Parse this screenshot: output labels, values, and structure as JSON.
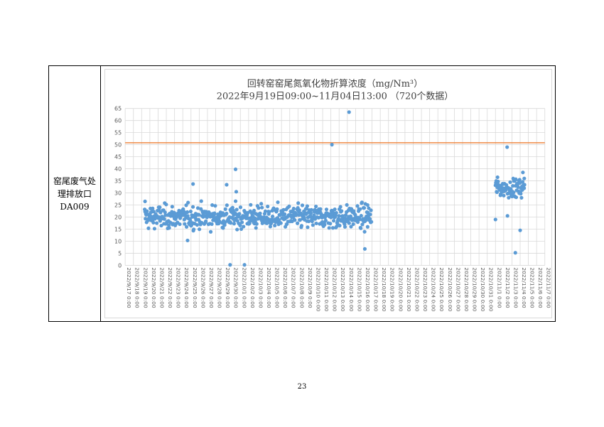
{
  "table": {
    "row_label_lines": [
      "窑尾废气处",
      "理排放口",
      "DA009"
    ]
  },
  "page": {
    "number": "23"
  },
  "chart_data": {
    "type": "scatter",
    "title": "回转窑窑尾氮氧化物折算浓度（mg/Nm³）",
    "subtitle": "2022年9月19日09:00~11月04日13:00 （720个数据）",
    "xlabel": "",
    "ylabel": "",
    "ylim": [
      0,
      65
    ],
    "yticks": [
      0,
      5,
      10,
      15,
      20,
      25,
      30,
      35,
      40,
      45,
      50,
      55,
      60,
      65
    ],
    "x_tick_labels": [
      "2022/9/17 0:00",
      "2022/9/18 0:00",
      "2022/9/19 0:00",
      "2022/9/20 0:00",
      "2022/9/21 0:00",
      "2022/9/22 0:00",
      "2022/9/23 0:00",
      "2022/9/24 0:00",
      "2022/9/25 0:00",
      "2022/9/26 0:00",
      "2022/9/27 0:00",
      "2022/9/28 0:00",
      "2022/9/29 0:00",
      "2022/9/30 0:00",
      "2022/10/1 0:00",
      "2022/10/2 0:00",
      "2022/10/3 0:00",
      "2022/10/4 0:00",
      "2022/10/5 0:00",
      "2022/10/6 0:00",
      "2022/10/7 0:00",
      "2022/10/8 0:00",
      "2022/10/9 0:00",
      "2022/10/10 0:00",
      "2022/10/11 0:00",
      "2022/10/12 0:00",
      "2022/10/13 0:00",
      "2022/10/14 0:00",
      "2022/10/15 0:00",
      "2022/10/16 0:00",
      "2022/10/17 0:00",
      "2022/10/18 0:00",
      "2022/10/19 0:00",
      "2022/10/20 0:00",
      "2022/10/21 0:00",
      "2022/10/22 0:00",
      "2022/10/23 0:00",
      "2022/10/24 0:00",
      "2022/10/25 0:00",
      "2022/10/26 0:00",
      "2022/10/27 0:00",
      "2022/10/28 0:00",
      "2022/10/29 0:00",
      "2022/10/30 0:00",
      "2022/10/31 0:00",
      "2022/11/1 0:00",
      "2022/11/2 0:00",
      "2022/11/3 0:00",
      "2022/11/4 0:00",
      "2022/11/5 0:00",
      "2022/11/6 0:00",
      "2022/11/7 0:00"
    ],
    "grid": true,
    "series_color": "#5b9bd5",
    "limit_line": {
      "value": 50.8,
      "color": "#ed7d31"
    },
    "segments": [
      {
        "start": "2022-09-19 09:00",
        "end": "2022-10-16 23:00",
        "mean": 20,
        "spread": 4.5
      },
      {
        "start": "2022-11-01 00:00",
        "end": "2022-11-04 13:00",
        "mean": 32,
        "spread": 3.5
      }
    ],
    "notable_points": [
      {
        "x": "2022-09-19 10:00",
        "y": 26.5
      },
      {
        "x": "2022-09-24 14:00",
        "y": 10.3
      },
      {
        "x": "2022-09-25 06:00",
        "y": 33.7
      },
      {
        "x": "2022-09-29 08:00",
        "y": 33.4
      },
      {
        "x": "2022-09-29 18:00",
        "y": 0.2
      },
      {
        "x": "2022-09-30 10:00",
        "y": 39.8
      },
      {
        "x": "2022-09-30 12:00",
        "y": 30.5
      },
      {
        "x": "2022-10-01 12:00",
        "y": 0.2
      },
      {
        "x": "2022-10-12 03:00",
        "y": 50.0
      },
      {
        "x": "2022-10-14 05:00",
        "y": 63.5
      },
      {
        "x": "2022-10-16 03:00",
        "y": 6.8
      },
      {
        "x": "2022-10-16 11:00",
        "y": 25.0
      },
      {
        "x": "2022-11-01 00:00",
        "y": 19.0
      },
      {
        "x": "2022-11-01 06:00",
        "y": 36.5
      },
      {
        "x": "2022-11-02 10:00",
        "y": 49.0
      },
      {
        "x": "2022-11-02 11:00",
        "y": 20.5
      },
      {
        "x": "2022-11-03 10:00",
        "y": 5.2
      },
      {
        "x": "2022-11-04 00:00",
        "y": 14.5
      },
      {
        "x": "2022-11-04 08:00",
        "y": 38.5
      },
      {
        "x": "2022-11-04 12:00",
        "y": 36.0
      }
    ]
  }
}
